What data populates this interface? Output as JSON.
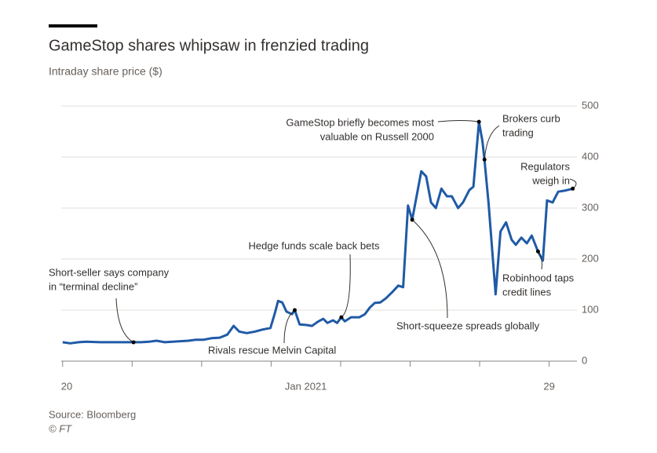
{
  "chart_data": {
    "type": "line",
    "title": "GameStop shares whipsaw in frenzied trading",
    "subtitle": "Intraday share price ($)",
    "source": "Source: Bloomberg",
    "credit": "© FT",
    "x": [
      0,
      0.11,
      0.23,
      0.34,
      0.56,
      0.79,
      1.02,
      1.13,
      1.24,
      1.35,
      1.47,
      1.58,
      1.81,
      1.92,
      2.03,
      2.14,
      2.26,
      2.37,
      2.46,
      2.54,
      2.65,
      2.77,
      2.88,
      2.99,
      3.05,
      3.1,
      3.16,
      3.22,
      3.3,
      3.34,
      3.41,
      3.5,
      3.59,
      3.67,
      3.75,
      3.81,
      3.89,
      3.95,
      4.01,
      4.06,
      4.15,
      4.27,
      4.35,
      4.42,
      4.49,
      4.57,
      4.65,
      4.74,
      4.83,
      4.9,
      4.97,
      5.03,
      5.16,
      5.23,
      5.3,
      5.37,
      5.45,
      5.53,
      5.6,
      5.69,
      5.76,
      5.85,
      5.91,
      5.99,
      6.04,
      6.07,
      6.13,
      6.23,
      6.3,
      6.38,
      6.46,
      6.52,
      6.6,
      6.68,
      6.75,
      6.84,
      6.91,
      6.97,
      7.05,
      7.13,
      7.22,
      7.34
    ],
    "series": [
      {
        "name": "GameStop",
        "color": "#1f5aa6",
        "values": [
          37,
          35,
          37,
          38,
          37,
          37,
          37,
          37,
          38,
          40,
          37,
          38,
          40,
          42,
          42,
          45,
          46,
          52,
          69,
          58,
          55,
          58,
          62,
          65,
          92,
          118,
          115,
          97,
          92,
          100,
          72,
          71,
          69,
          77,
          83,
          75,
          80,
          75,
          86,
          78,
          86,
          86,
          92,
          105,
          114,
          115,
          123,
          135,
          148,
          145,
          305,
          277,
          372,
          362,
          311,
          300,
          338,
          323,
          323,
          300,
          311,
          335,
          342,
          469,
          431,
          395,
          308,
          131,
          254,
          272,
          238,
          228,
          242,
          231,
          246,
          215,
          197,
          315,
          311,
          332,
          334,
          338
        ]
      }
    ],
    "xlim": [
      -0.02,
      7.4
    ],
    "xticks": [
      0,
      1,
      2,
      3,
      4,
      5,
      6,
      7
    ],
    "xtick_labels": [
      {
        "value": 0,
        "label": "20"
      },
      {
        "value": 3.5,
        "label": "Jan 2021"
      },
      {
        "value": 7,
        "label": "29"
      }
    ],
    "ylim": [
      0,
      500
    ],
    "yticks": [
      0,
      100,
      200,
      300,
      400,
      500
    ],
    "grid": true,
    "annotations": [
      {
        "lines": [
          "Short-seller says company",
          "in “terminal decline”"
        ]
      },
      {
        "lines": [
          "Hedge funds scale back bets"
        ]
      },
      {
        "lines": [
          "Rivals rescue Melvin Capital"
        ]
      },
      {
        "lines": [
          "GameStop briefly becomes most",
          "valuable on Russell 2000"
        ]
      },
      {
        "lines": [
          "Brokers curb",
          "trading"
        ]
      },
      {
        "lines": [
          "Regulators",
          "weigh in"
        ]
      },
      {
        "lines": [
          "Robinhood taps",
          "credit lines"
        ]
      },
      {
        "lines": [
          "Short-squeeze spreads globally"
        ]
      }
    ]
  }
}
